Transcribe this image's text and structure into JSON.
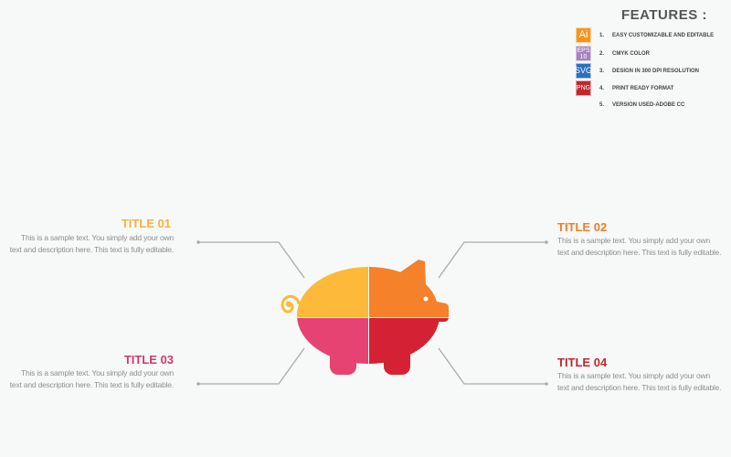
{
  "features": {
    "title": "FEATURES :",
    "items": [
      {
        "badge": "Ai",
        "badge_color": "#f7941d",
        "num": "1.",
        "text": "EASY CUSTOMIZABLE AND EDITABLE"
      },
      {
        "badge": "EPS 10",
        "badge_color": "#a781c0",
        "num": "2.",
        "text": "CMYK COLOR"
      },
      {
        "badge": "SVG",
        "badge_color": "#2a6fc0",
        "num": "3.",
        "text": "DESIGN IN 300 DPI RESOLUTION"
      },
      {
        "badge": "PNG",
        "badge_color": "#c1272d",
        "num": "4.",
        "text": "PRINT READY FORMAT"
      },
      {
        "badge": "",
        "badge_color": "",
        "num": "5.",
        "text": "VERSION USED-ADOBE CC"
      }
    ]
  },
  "blocks": [
    {
      "title": "TITLE 01",
      "color": "#fbb03b",
      "text": "This is a sample text. You simply add your own text and description here. This text is fully editable."
    },
    {
      "title": "TITLE 02",
      "color": "#f47c2a",
      "text": "This is a sample text. You simply add your own text and description here. This text is fully editable."
    },
    {
      "title": "TITLE 03",
      "color": "#d9376e",
      "text": "This is a sample text. You simply add your own text and description here. This text is fully editable."
    },
    {
      "title": "TITLE 04",
      "color": "#c1272d",
      "text": "This is a sample text. You simply add your own text and description here. This text is fully editable."
    }
  ],
  "pig_colors": {
    "top_left": "#fcb93a",
    "top_right": "#f5812a",
    "bottom_left": "#e64372",
    "bottom_right": "#d42234"
  }
}
